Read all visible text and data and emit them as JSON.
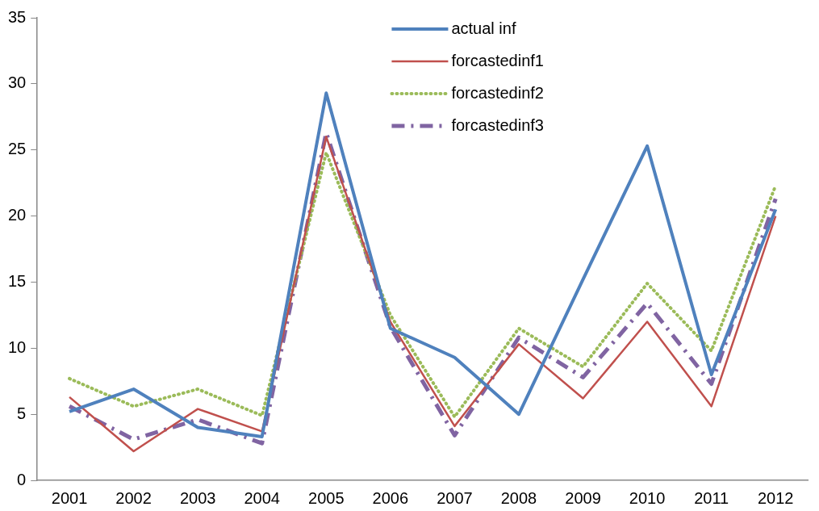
{
  "chart_data": {
    "type": "line",
    "categories": [
      "2001",
      "2002",
      "2003",
      "2004",
      "2005",
      "2006",
      "2007",
      "2008",
      "2009",
      "2010",
      "2011",
      "2012"
    ],
    "series": [
      {
        "name": "actual inf",
        "color": "#4f81bd",
        "line_style": "solid",
        "values": [
          5.2,
          6.9,
          4.0,
          3.3,
          29.3,
          11.5,
          9.3,
          5.0,
          15.2,
          25.3,
          8.0,
          20.5
        ]
      },
      {
        "name": "forcastedinf1",
        "color": "#c0504d",
        "line_style": "solid",
        "values": [
          6.3,
          2.2,
          5.4,
          3.7,
          26.0,
          12.0,
          4.1,
          10.3,
          6.2,
          12.0,
          5.6,
          20.0
        ]
      },
      {
        "name": "forcastedinf2",
        "color": "#9bbb59",
        "line_style": "dotted",
        "values": [
          7.7,
          5.6,
          6.9,
          4.9,
          24.8,
          12.5,
          4.8,
          11.5,
          8.6,
          14.9,
          9.8,
          22.3
        ]
      },
      {
        "name": "forcastedinf3",
        "color": "#8064a2",
        "line_style": "dashed",
        "values": [
          5.6,
          3.1,
          4.6,
          2.8,
          26.3,
          11.6,
          3.4,
          10.8,
          7.8,
          13.4,
          7.3,
          21.3
        ]
      }
    ],
    "ylim": [
      0,
      35
    ],
    "yticks": [
      0,
      5,
      10,
      15,
      20,
      25,
      30,
      35
    ],
    "grid": false,
    "legend": "top",
    "marker": "none"
  }
}
